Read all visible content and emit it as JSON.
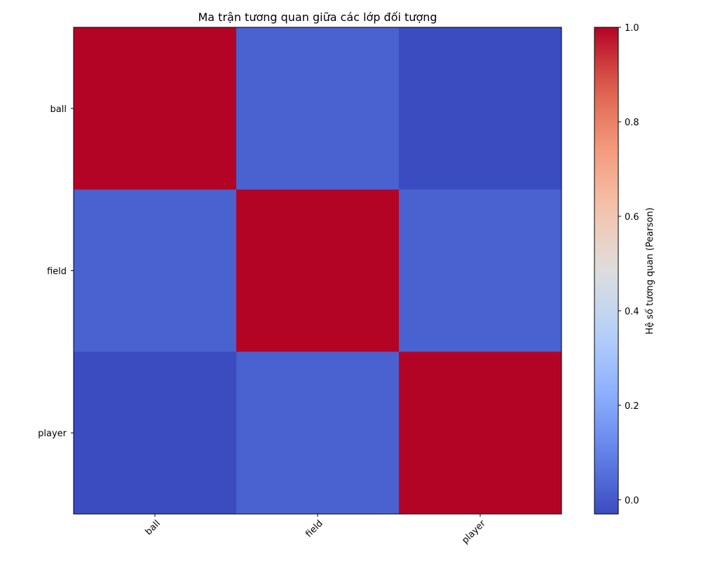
{
  "chart_data": {
    "type": "heatmap",
    "title": "Ma trận tương quan giữa các lớp đối tượng",
    "x_categories": [
      "ball",
      "field",
      "player"
    ],
    "y_categories": [
      "ball",
      "field",
      "player"
    ],
    "values": [
      [
        1.0,
        0.02,
        -0.03
      ],
      [
        0.02,
        1.0,
        0.02
      ],
      [
        -0.03,
        0.02,
        1.0
      ]
    ],
    "colorbar": {
      "label": "Hệ số tương quan (Pearson)",
      "range": [
        -0.03,
        1.0
      ],
      "ticks": [
        "0.0",
        "0.2",
        "0.4",
        "0.6",
        "0.8",
        "1.0"
      ],
      "tick_values": [
        0.0,
        0.2,
        0.4,
        0.6,
        0.8,
        1.0
      ],
      "colormap": "coolwarm"
    },
    "grid": false
  }
}
